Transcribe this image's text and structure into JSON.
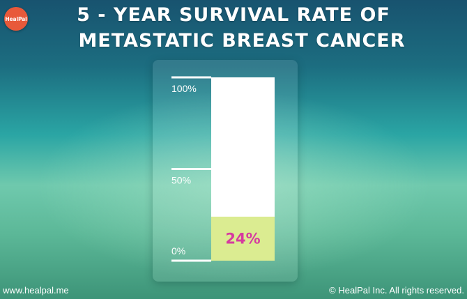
{
  "brand": {
    "logo_text": "HealPal"
  },
  "title": {
    "line1": "5 - YEAR SURVIVAL RATE OF",
    "line2": "METASTATIC BREAST CANCER"
  },
  "chart_data": {
    "type": "bar",
    "categories": [
      ""
    ],
    "values": [
      24
    ],
    "value_label": "24%",
    "ylim": [
      0,
      100
    ],
    "ticks": [
      {
        "value": 100,
        "label": "100%"
      },
      {
        "value": 50,
        "label": "50%"
      },
      {
        "value": 0,
        "label": "0%"
      }
    ],
    "colors": {
      "fill": "#dbec91",
      "track": "#ffffff",
      "value_label": "#d63aa0",
      "ticks": "#ffffff"
    }
  },
  "footer": {
    "website": "www.healpal.me",
    "copyright": "© HealPal Inc. All rights reserved."
  }
}
